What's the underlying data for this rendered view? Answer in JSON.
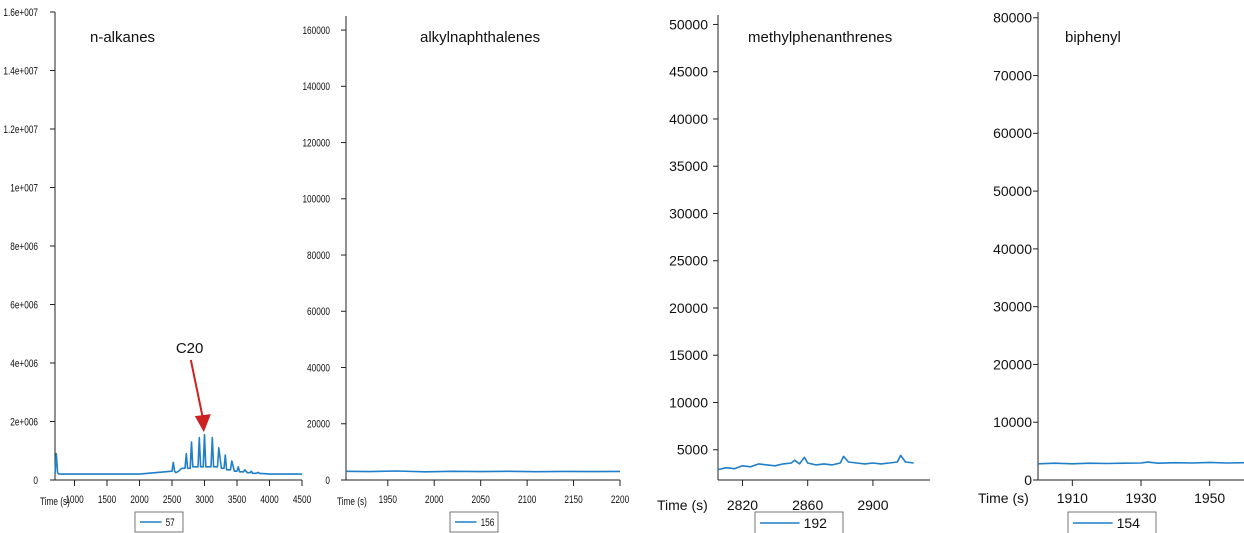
{
  "colors": {
    "series": "#1f7fc9",
    "annotation": "#cc2222",
    "axis": "#222222"
  },
  "chart_data": [
    {
      "type": "line",
      "title": "n-alkanes",
      "xlabel": "Time (s)",
      "xlim": [
        700,
        4500
      ],
      "ylim": [
        0,
        16000000
      ],
      "x_ticks": [
        1000,
        1500,
        2000,
        2500,
        3000,
        3500,
        4000,
        4500
      ],
      "x_tick_labels": [
        "1000",
        "1500",
        "2000",
        "2500",
        "3000",
        "3500",
        "4000",
        "4500"
      ],
      "y_ticks": [
        0,
        2000000,
        4000000,
        6000000,
        8000000,
        10000000,
        12000000,
        14000000,
        16000000
      ],
      "y_tick_labels": [
        "0",
        "2e+006",
        "4e+006",
        "6e+006",
        "8e+006",
        "1e+007",
        "1.2e+007",
        "1.4e+007",
        "1.6e+007"
      ],
      "legend": "57",
      "annotation": {
        "text": "C20",
        "x": 2990,
        "y": 1500000
      },
      "series": [
        {
          "name": "57",
          "x": [
            700,
            720,
            740,
            760,
            800,
            1000,
            1500,
            2000,
            2500,
            2520,
            2540,
            2560,
            2600,
            2650,
            2700,
            2720,
            2740,
            2780,
            2800,
            2820,
            2860,
            2900,
            2920,
            2940,
            2980,
            3000,
            3020,
            3060,
            3100,
            3120,
            3140,
            3180,
            3200,
            3220,
            3260,
            3300,
            3320,
            3340,
            3380,
            3400,
            3420,
            3460,
            3500,
            3520,
            3540,
            3580,
            3600,
            3620,
            3660,
            3700,
            3720,
            3740,
            3780,
            3800,
            3820,
            3860,
            3900,
            4000,
            4500
          ],
          "y": [
            200000,
            900000,
            250000,
            200000,
            200000,
            200000,
            200000,
            200000,
            300000,
            600000,
            300000,
            250000,
            300000,
            400000,
            400000,
            900000,
            400000,
            400000,
            1300000,
            450000,
            450000,
            450000,
            1450000,
            450000,
            450000,
            1550000,
            450000,
            450000,
            450000,
            1450000,
            450000,
            450000,
            450000,
            1100000,
            400000,
            400000,
            850000,
            350000,
            350000,
            350000,
            650000,
            300000,
            300000,
            450000,
            280000,
            280000,
            280000,
            350000,
            250000,
            250000,
            300000,
            230000,
            230000,
            230000,
            260000,
            220000,
            220000,
            200000,
            200000
          ]
        }
      ]
    },
    {
      "type": "line",
      "title": "alkylnaphthalenes",
      "xlabel": "Time (s)",
      "xlim": [
        1905,
        2200
      ],
      "ylim": [
        0,
        165000
      ],
      "x_ticks": [
        1950,
        2000,
        2050,
        2100,
        2150,
        2200
      ],
      "x_tick_labels": [
        "1950",
        "2000",
        "2050",
        "2100",
        "2150",
        "2200"
      ],
      "y_ticks": [
        0,
        20000,
        40000,
        60000,
        80000,
        100000,
        120000,
        140000,
        160000
      ],
      "y_tick_labels": [
        "0",
        "20000",
        "40000",
        "60000",
        "80000",
        "100000",
        "120000",
        "140000",
        "160000"
      ],
      "legend": "156",
      "series": [
        {
          "name": "156",
          "x": [
            1905,
            1930,
            1960,
            1990,
            2020,
            2050,
            2080,
            2110,
            2140,
            2170,
            2200
          ],
          "y": [
            3100,
            3000,
            3200,
            2900,
            3100,
            3000,
            3100,
            2950,
            3050,
            3000,
            3050
          ]
        }
      ]
    },
    {
      "type": "line",
      "title": "methylphenanthrenes",
      "xlabel": "Time (s)",
      "xlim": [
        2805,
        2935
      ],
      "ylim": [
        1800,
        51000
      ],
      "x_ticks": [
        2820,
        2860,
        2900
      ],
      "x_tick_labels": [
        "2820",
        "2860",
        "2900"
      ],
      "y_ticks": [
        5000,
        10000,
        15000,
        20000,
        25000,
        30000,
        35000,
        40000,
        45000,
        50000
      ],
      "y_tick_labels": [
        "5000",
        "10000",
        "15000",
        "20000",
        "25000",
        "30000",
        "35000",
        "40000",
        "45000",
        "50000"
      ],
      "legend": "192",
      "series": [
        {
          "name": "192",
          "x": [
            2805,
            2810,
            2815,
            2820,
            2825,
            2830,
            2835,
            2840,
            2845,
            2850,
            2852,
            2855,
            2858,
            2860,
            2865,
            2870,
            2875,
            2880,
            2882,
            2885,
            2890,
            2895,
            2900,
            2905,
            2910,
            2915,
            2917,
            2920,
            2925
          ],
          "y": [
            2900,
            3100,
            3000,
            3300,
            3200,
            3500,
            3400,
            3300,
            3500,
            3600,
            3900,
            3500,
            4200,
            3600,
            3400,
            3500,
            3400,
            3600,
            4300,
            3700,
            3600,
            3500,
            3600,
            3500,
            3600,
            3700,
            4400,
            3700,
            3600
          ]
        }
      ]
    },
    {
      "type": "line",
      "title": "biphenyl",
      "xlabel": "Time (s)",
      "xlim": [
        1900,
        1960
      ],
      "ylim": [
        0,
        81000
      ],
      "x_ticks": [
        1910,
        1930,
        1950
      ],
      "x_tick_labels": [
        "1910",
        "1930",
        "1950"
      ],
      "y_ticks": [
        0,
        10000,
        20000,
        30000,
        40000,
        50000,
        60000,
        70000,
        80000
      ],
      "y_tick_labels": [
        "0",
        "10000",
        "20000",
        "30000",
        "40000",
        "50000",
        "60000",
        "70000",
        "80000"
      ],
      "legend": "154",
      "series": [
        {
          "name": "154",
          "x": [
            1900,
            1905,
            1910,
            1915,
            1920,
            1925,
            1930,
            1932,
            1935,
            1940,
            1945,
            1950,
            1955,
            1960
          ],
          "y": [
            2800,
            2900,
            2800,
            2900,
            2850,
            2900,
            2950,
            3100,
            2900,
            3000,
            2950,
            3050,
            2950,
            3000
          ]
        }
      ]
    }
  ]
}
